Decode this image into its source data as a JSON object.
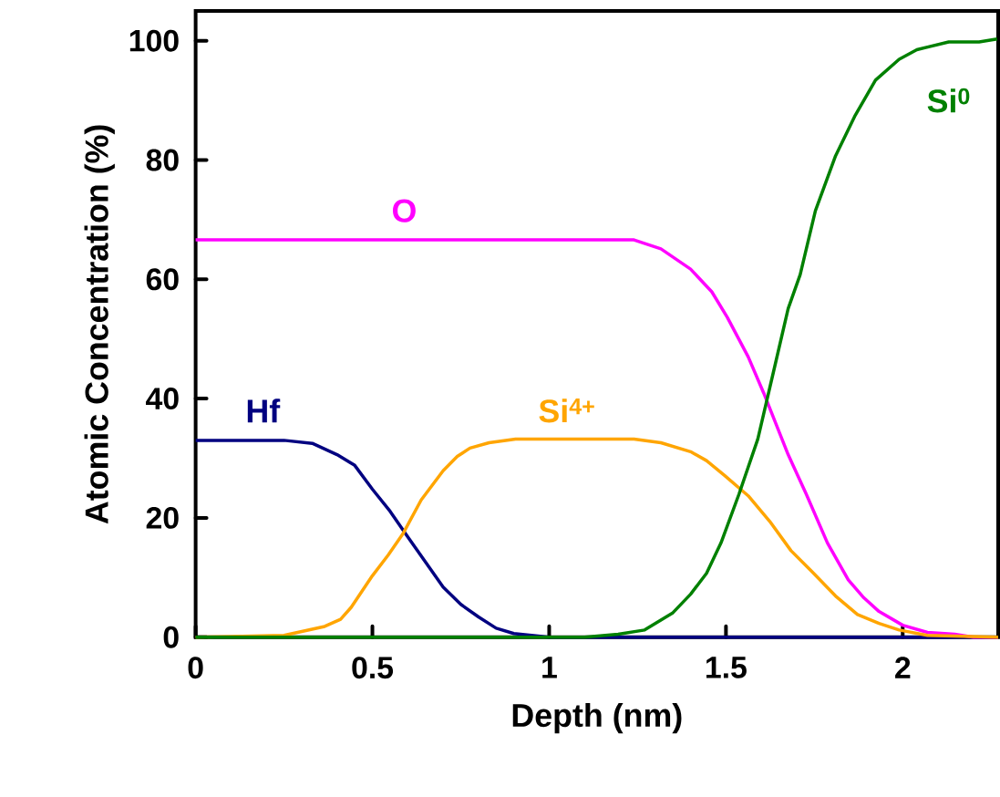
{
  "chart_data": {
    "type": "line",
    "xlabel": "Depth (nm)",
    "ylabel": "Atomic Concentration (%)",
    "xlim": [
      0,
      2.27
    ],
    "ylim": [
      0,
      105
    ],
    "xticks": [
      0,
      0.5,
      1,
      1.5,
      2
    ],
    "yticks": [
      0,
      20,
      40,
      60,
      80,
      100
    ],
    "grid": false,
    "legend": false,
    "marker": "none",
    "line_style": "solid",
    "series": [
      {
        "name": "Hf",
        "color": "#000080",
        "x": [
          0,
          0.25,
          0.33,
          0.4,
          0.45,
          0.5,
          0.55,
          0.6,
          0.65,
          0.7,
          0.75,
          0.8,
          0.85,
          0.9,
          1.0,
          1.5,
          2.0,
          2.27
        ],
        "values": [
          33,
          33,
          32.5,
          30.6,
          28.8,
          24.8,
          21.1,
          16.8,
          12.6,
          8.4,
          5.5,
          3.4,
          1.5,
          0.6,
          0,
          0,
          0,
          0
        ]
      },
      {
        "name": "O",
        "color": "#ff00ff",
        "x": [
          0,
          0.5,
          1.0,
          1.195,
          1.24,
          1.316,
          1.4,
          1.46,
          1.504,
          1.563,
          1.607,
          1.676,
          1.727,
          1.787,
          1.846,
          1.89,
          1.933,
          2.0,
          2.07,
          2.147,
          2.2,
          2.27
        ],
        "values": [
          66.6,
          66.6,
          66.6,
          66.6,
          66.6,
          65.1,
          61.7,
          57.9,
          53.6,
          47,
          40.9,
          30.6,
          24,
          15.8,
          9.6,
          6.6,
          4.3,
          2,
          0.8,
          0.5,
          0,
          0
        ]
      },
      {
        "name": "Si$^{4+}$",
        "color": "#ffa500",
        "x": [
          0,
          0.25,
          0.365,
          0.41,
          0.44,
          0.5,
          0.545,
          0.586,
          0.638,
          0.7,
          0.74,
          0.776,
          0.83,
          0.905,
          1.0,
          1.24,
          1.316,
          1.4,
          1.445,
          1.496,
          1.563,
          1.624,
          1.684,
          1.743,
          1.81,
          1.872,
          1.933,
          1.99,
          2.07,
          2.27
        ],
        "values": [
          0,
          0.3,
          1.8,
          3,
          5,
          10.3,
          13.8,
          17.3,
          23,
          27.9,
          30.3,
          31.7,
          32.6,
          33.2,
          33.2,
          33.2,
          32.6,
          31.1,
          29.6,
          27.1,
          23.7,
          19.4,
          14.5,
          11,
          6.9,
          3.8,
          2.3,
          1.2,
          0.3,
          0
        ]
      },
      {
        "name": "Si$^{0}$",
        "color": "#008000",
        "x": [
          0,
          0.5,
          1.0,
          1.1,
          1.195,
          1.27,
          1.35,
          1.4,
          1.445,
          1.486,
          1.537,
          1.59,
          1.64,
          1.676,
          1.71,
          1.753,
          1.81,
          1.864,
          1.923,
          1.99,
          2.04,
          2.13,
          2.216,
          2.267
        ],
        "values": [
          0,
          0,
          0,
          0,
          0.5,
          1.2,
          4.1,
          7.2,
          10.7,
          15.8,
          24,
          33.2,
          45.9,
          55.1,
          60.8,
          71.5,
          80.7,
          87.3,
          93.4,
          96.9,
          98.5,
          99.8,
          99.8,
          100.3
        ]
      }
    ]
  }
}
